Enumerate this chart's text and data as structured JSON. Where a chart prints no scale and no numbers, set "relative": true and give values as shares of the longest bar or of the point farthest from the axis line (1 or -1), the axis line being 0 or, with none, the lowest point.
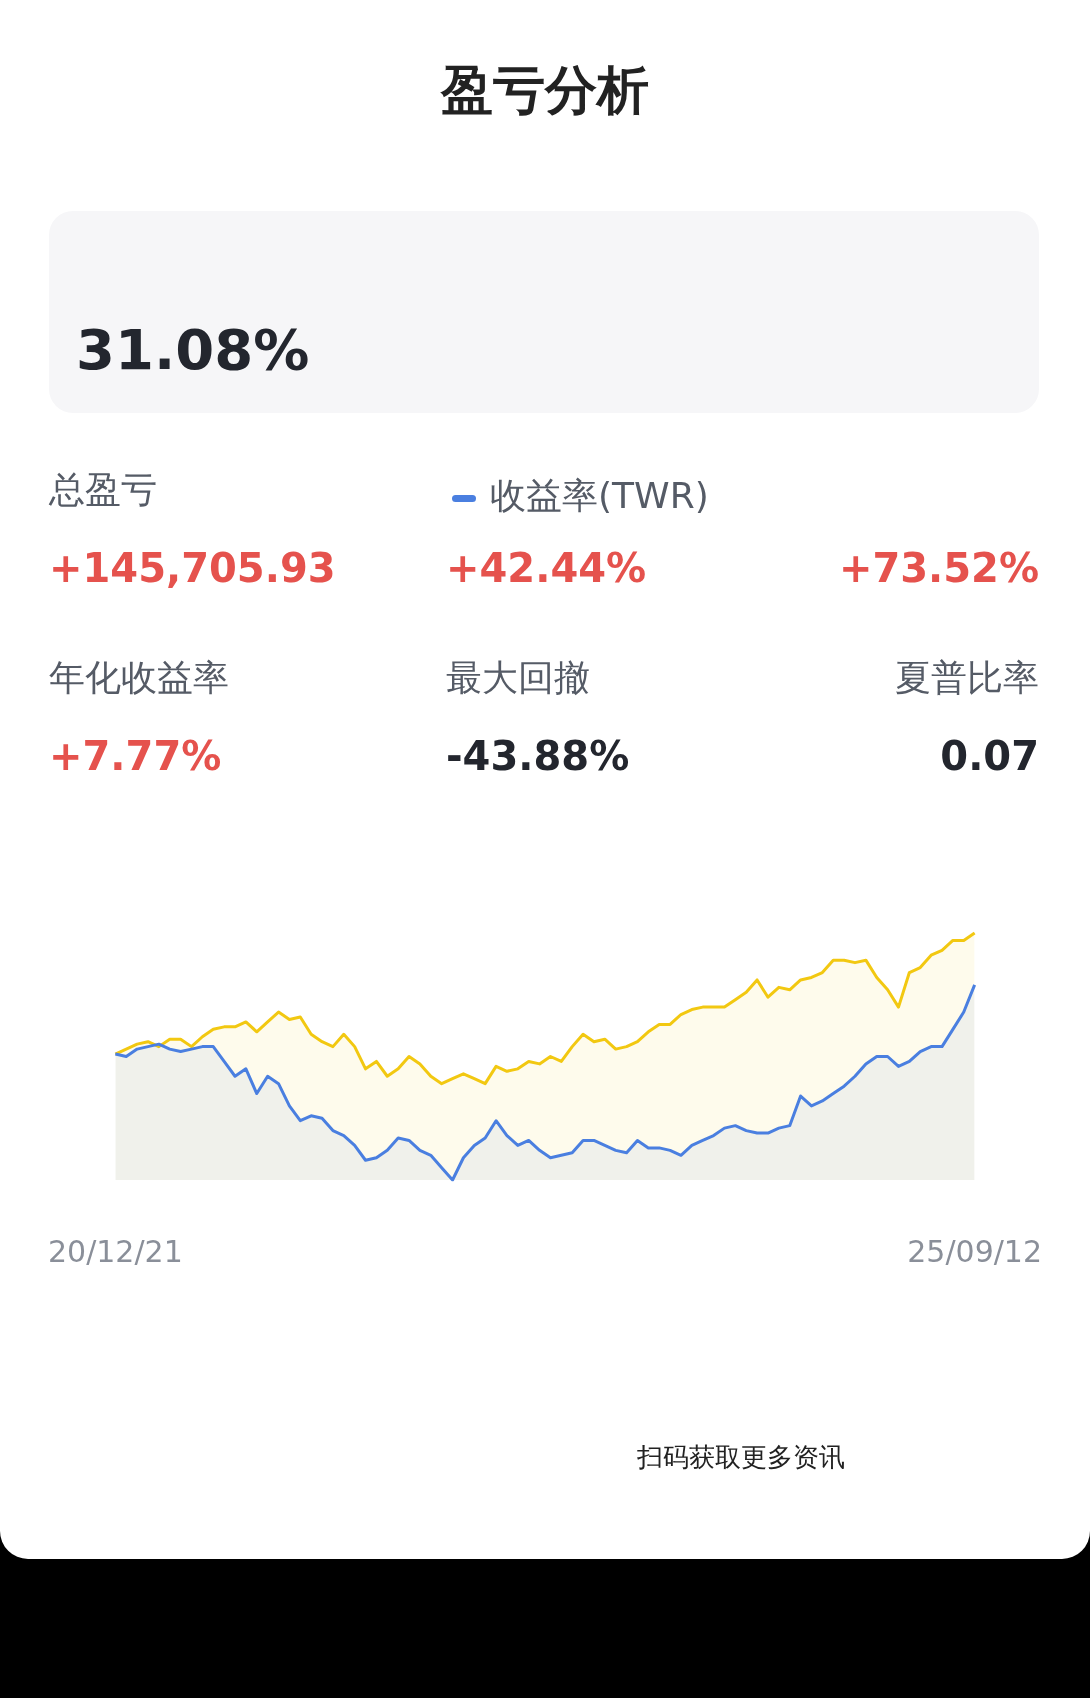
{
  "chart_data": {
    "type": "area",
    "title": "盈亏分析",
    "relative": true,
    "legend": "top",
    "categories": [
      "20/12/21",
      null,
      null,
      null,
      null,
      null,
      null,
      null,
      null,
      null,
      null,
      null,
      null,
      null,
      null,
      null,
      null,
      null,
      null,
      null,
      null,
      null,
      null,
      null,
      null,
      null,
      null,
      null,
      null,
      null,
      null,
      null,
      null,
      null,
      null,
      null,
      null,
      null,
      null,
      null,
      null,
      null,
      null,
      null,
      null,
      null,
      null,
      null,
      null,
      null,
      null,
      null,
      null,
      null,
      null,
      null,
      null,
      null,
      null,
      null,
      null,
      null,
      null,
      null,
      null,
      null,
      null,
      null,
      null,
      null,
      null,
      null,
      null,
      null,
      null,
      null,
      null,
      null,
      null,
      "25/09/12"
    ],
    "series": [
      {
        "color": "#f2c811",
        "values": [
          0.51,
          0.53,
          0.55,
          0.56,
          0.54,
          0.57,
          0.57,
          0.54,
          0.58,
          0.61,
          0.62,
          0.62,
          0.64,
          0.6,
          0.64,
          0.68,
          0.65,
          0.66,
          0.59,
          0.56,
          0.54,
          0.59,
          0.54,
          0.45,
          0.48,
          0.42,
          0.45,
          0.5,
          0.47,
          0.42,
          0.39,
          0.41,
          0.43,
          0.41,
          0.39,
          0.46,
          0.44,
          0.45,
          0.48,
          0.47,
          0.5,
          0.48,
          0.54,
          0.59,
          0.56,
          0.57,
          0.53,
          0.54,
          0.56,
          0.6,
          0.63,
          0.63,
          0.67,
          0.69,
          0.7,
          0.7,
          0.7,
          0.73,
          0.76,
          0.81,
          0.74,
          0.78,
          0.77,
          0.81,
          0.82,
          0.84,
          0.89,
          0.89,
          0.88,
          0.89,
          0.82,
          0.77,
          0.7,
          0.84,
          0.86,
          0.91,
          0.93,
          0.97,
          0.97,
          1
        ]
      },
      {
        "name": "收益率(TWR)",
        "color": "#4a7fe0",
        "values": [
          0.51,
          0.5,
          0.53,
          0.54,
          0.55,
          0.53,
          0.52,
          0.53,
          0.54,
          0.54,
          0.48,
          0.42,
          0.45,
          0.35,
          0.42,
          0.39,
          0.3,
          0.24,
          0.26,
          0.25,
          0.2,
          0.18,
          0.14,
          0.08,
          0.09,
          0.12,
          0.17,
          0.16,
          0.12,
          0.1,
          0.05,
          0,
          0.09,
          0.14,
          0.17,
          0.24,
          0.18,
          0.14,
          0.16,
          0.12,
          0.09,
          0.1,
          0.11,
          0.16,
          0.16,
          0.14,
          0.12,
          0.11,
          0.16,
          0.13,
          0.13,
          0.12,
          0.1,
          0.14,
          0.16,
          0.18,
          0.21,
          0.22,
          0.2,
          0.19,
          0.19,
          0.21,
          0.22,
          0.34,
          0.3,
          0.32,
          0.35,
          0.38,
          0.42,
          0.47,
          0.5,
          0.5,
          0.46,
          0.48,
          0.52,
          0.54,
          0.54,
          0.61,
          0.68,
          0.79
        ]
      }
    ],
    "annotations": [
      "31.08%",
      "总盈亏",
      "+145,705.93",
      "+42.44%",
      "+73.52%",
      "年化收益率",
      "+7.77%",
      "最大回撤",
      "-43.88%",
      "夏普比率",
      "0.07",
      "扫码获取更多资讯"
    ]
  }
}
